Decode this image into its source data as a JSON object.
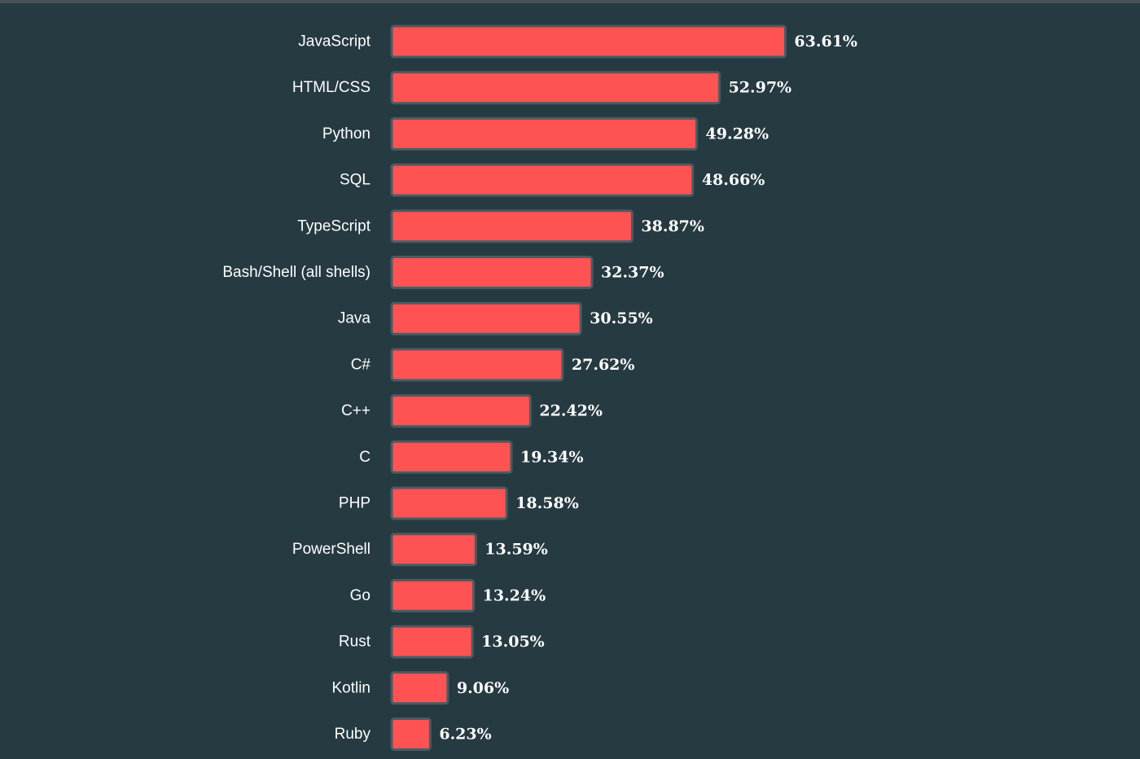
{
  "colors": {
    "background": "#263a42",
    "bar_fill": "#ff5252",
    "bar_border": "#4b5b62",
    "text": "#ffffff"
  },
  "chart_data": {
    "type": "bar",
    "orientation": "horizontal",
    "title": "",
    "xlabel": "",
    "ylabel": "",
    "value_suffix": "%",
    "categories": [
      "JavaScript",
      "HTML/CSS",
      "Python",
      "SQL",
      "TypeScript",
      "Bash/Shell (all shells)",
      "Java",
      "C#",
      "C++",
      "C",
      "PHP",
      "PowerShell",
      "Go",
      "Rust",
      "Kotlin",
      "Ruby"
    ],
    "values": [
      63.61,
      52.97,
      49.28,
      48.66,
      38.87,
      32.37,
      30.55,
      27.62,
      22.42,
      19.34,
      18.58,
      13.59,
      13.24,
      13.05,
      9.06,
      6.23
    ],
    "value_labels": [
      "63.61%",
      "52.97%",
      "49.28%",
      "48.66%",
      "38.87%",
      "32.37%",
      "30.55%",
      "27.62%",
      "22.42%",
      "19.34%",
      "18.58%",
      "13.59%",
      "13.24%",
      "13.05%",
      "9.06%",
      "6.23%"
    ],
    "grid": false,
    "legend": "none"
  }
}
